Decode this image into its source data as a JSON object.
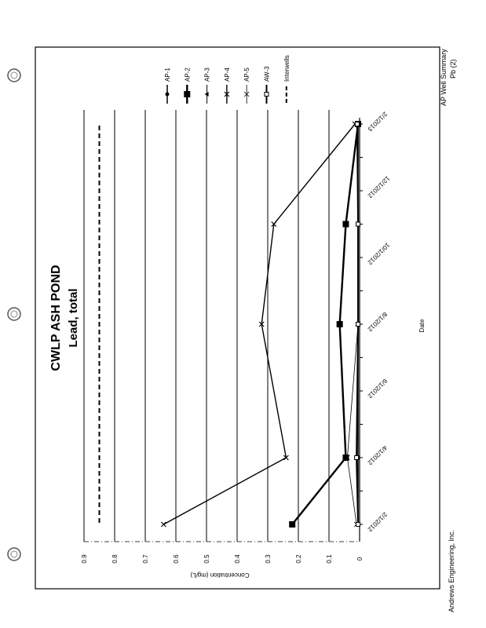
{
  "page": {
    "footer_left": "Andrews Engineering, Inc.",
    "footer_right_line1": "AP Well Summary",
    "footer_right_line2": "Pb (2)",
    "orientation": "rotated 90 degrees counter-clockwise (landscape page)"
  },
  "chart_data": {
    "type": "line",
    "title": "CWLP ASH POND",
    "subtitle": "Lead, total",
    "xlabel": "Date",
    "ylabel": "Concentration (mg/L)",
    "ylim": [
      0,
      0.9
    ],
    "yticks": [
      "0",
      "0.1",
      "0.2",
      "0.3",
      "0.4",
      "0.5",
      "0.6",
      "0.7",
      "0.8",
      "0.9"
    ],
    "xticks": [
      "2/1/2012",
      "4/1/2012",
      "6/1/2012",
      "8/1/2012",
      "10/1/2012",
      "12/1/2012",
      "2/1/2013"
    ],
    "xlim": [
      "2/1/2012",
      "2/1/2013"
    ],
    "grid": true,
    "legend_position": "right",
    "x": [
      "2/1/2012",
      "4/1/2012",
      "8/1/2012",
      "11/1/2012",
      "2/1/2013"
    ],
    "series": [
      {
        "name": "AP-1",
        "marker": "circle",
        "values": [
          0.005,
          0.005,
          0.005,
          0.005,
          0.005
        ]
      },
      {
        "name": "AP-2",
        "marker": "square",
        "values": [
          0.22,
          0.045,
          0.065,
          0.045,
          0.005
        ]
      },
      {
        "name": "AP-3",
        "marker": "triangle",
        "values": [
          0.005,
          0.005,
          0.005,
          0.005,
          0.005
        ]
      },
      {
        "name": "AP-4",
        "marker": "x",
        "values": [
          0.64,
          0.24,
          0.32,
          0.28,
          0.015
        ]
      },
      {
        "name": "AP-5",
        "marker": "x-thin",
        "values": [
          0.01,
          0.04,
          0.005,
          0.005,
          0.005
        ]
      },
      {
        "name": "AW-3",
        "marker": "open-square",
        "values": [
          0.005,
          0.01,
          0.005,
          0.005,
          0.008
        ]
      }
    ],
    "reference_line": {
      "name": "Interwells",
      "style": "dashed",
      "value": 0.85
    }
  }
}
